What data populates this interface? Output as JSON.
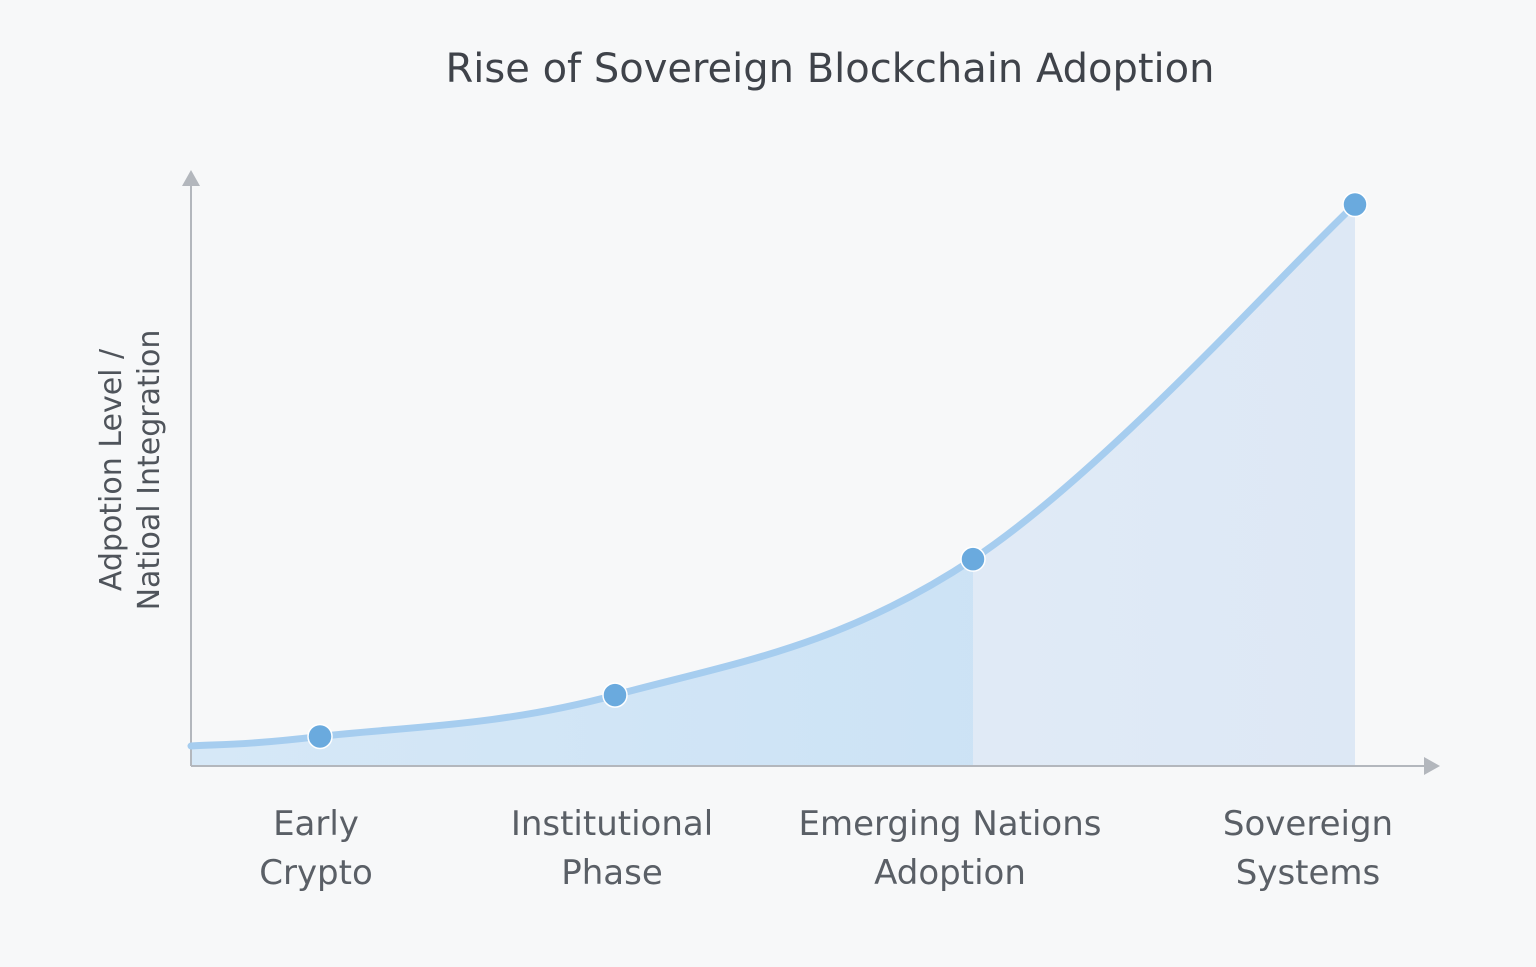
{
  "chart_data": {
    "type": "area",
    "title": "Rise of Sovereign Blockchain Adoption",
    "ylabel_lines": [
      "Adpotion Level /",
      "Natioal Integration"
    ],
    "xlabel": "",
    "categories": [
      {
        "line1": "Early",
        "line2": "Crypto"
      },
      {
        "line1": "Institutional",
        "line2": "Phase"
      },
      {
        "line1": "Emerging Nations",
        "line2": "Adoption"
      },
      {
        "line1": "Sovereign",
        "line2": "Systems"
      }
    ],
    "series": [
      {
        "name": "Adoption",
        "values": [
          5,
          12,
          35,
          95
        ]
      }
    ],
    "ylim": [
      0,
      100
    ],
    "grid": false,
    "legend": "none",
    "colors": {
      "line": "#a6cdef",
      "point": "#6aaade",
      "area_left": "#cfe3f5",
      "area_right": "#e3ecf7",
      "axis": "#b3b7bd",
      "title": "#3f434a"
    }
  }
}
